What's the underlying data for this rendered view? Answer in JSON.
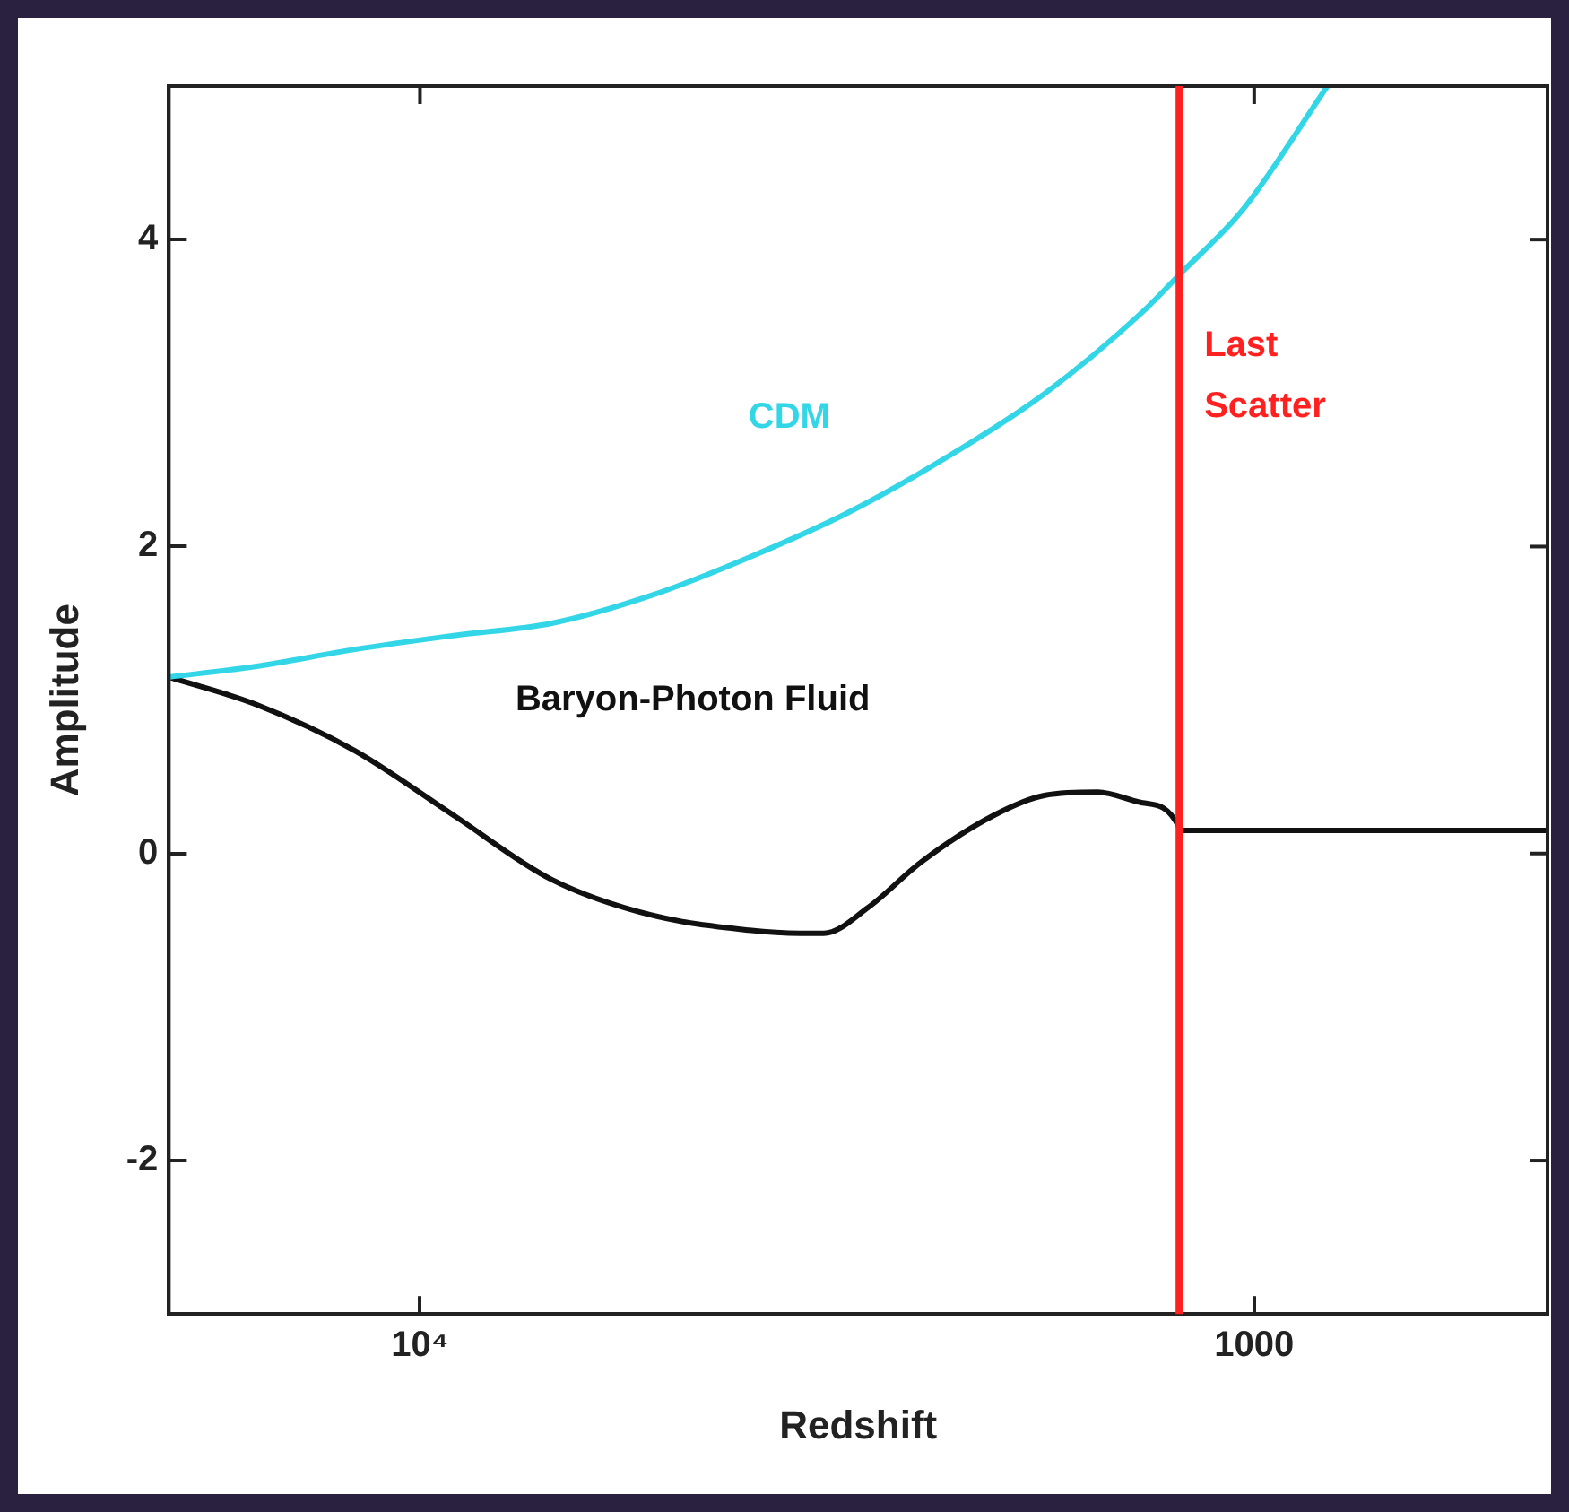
{
  "chart_data": {
    "type": "line",
    "xlabel": "Redshift",
    "ylabel": "Amplitude",
    "log": "x",
    "xlim": [
      20000,
      445
    ],
    "ylim": [
      -3,
      5
    ],
    "xticks": [
      {
        "value": 10000,
        "label": "10⁴"
      },
      {
        "value": 1000,
        "label": "1000"
      }
    ],
    "yticks": [
      -2,
      0,
      2,
      4
    ],
    "grid": false,
    "legend": false,
    "marker": "none",
    "line_style": "solid",
    "series": [
      {
        "color": "#33d6e6",
        "x": [
          20000,
          15700,
          11970,
          9120,
          6950,
          5290,
          4030,
          3070,
          2340,
          1780,
          1360,
          1230,
          1030,
          817
        ],
        "values": [
          1.15,
          1.22,
          1.33,
          1.42,
          1.5,
          1.68,
          1.93,
          2.22,
          2.58,
          3.0,
          3.53,
          3.77,
          4.2,
          5.0
        ]
      },
      {
        "color": "#111111",
        "x": [
          20000,
          15700,
          11970,
          9120,
          6950,
          5290,
          4030,
          3500,
          3280,
          2900,
          2500,
          2050,
          1780,
          1540,
          1360,
          1230,
          1229,
          1000,
          445
        ],
        "values": [
          1.15,
          0.97,
          0.67,
          0.25,
          -0.17,
          -0.4,
          -0.5,
          -0.52,
          -0.52,
          -0.35,
          -0.05,
          0.25,
          0.38,
          0.4,
          0.33,
          0.17,
          0.15,
          0.15,
          0.15
        ]
      }
    ],
    "ref_lines": [
      {
        "axis": "x",
        "value": 1230,
        "label": "Last Scatter",
        "color": "#ff2020"
      }
    ],
    "annotations": [
      "CDM",
      "Baryon-Photon Fluid"
    ]
  }
}
